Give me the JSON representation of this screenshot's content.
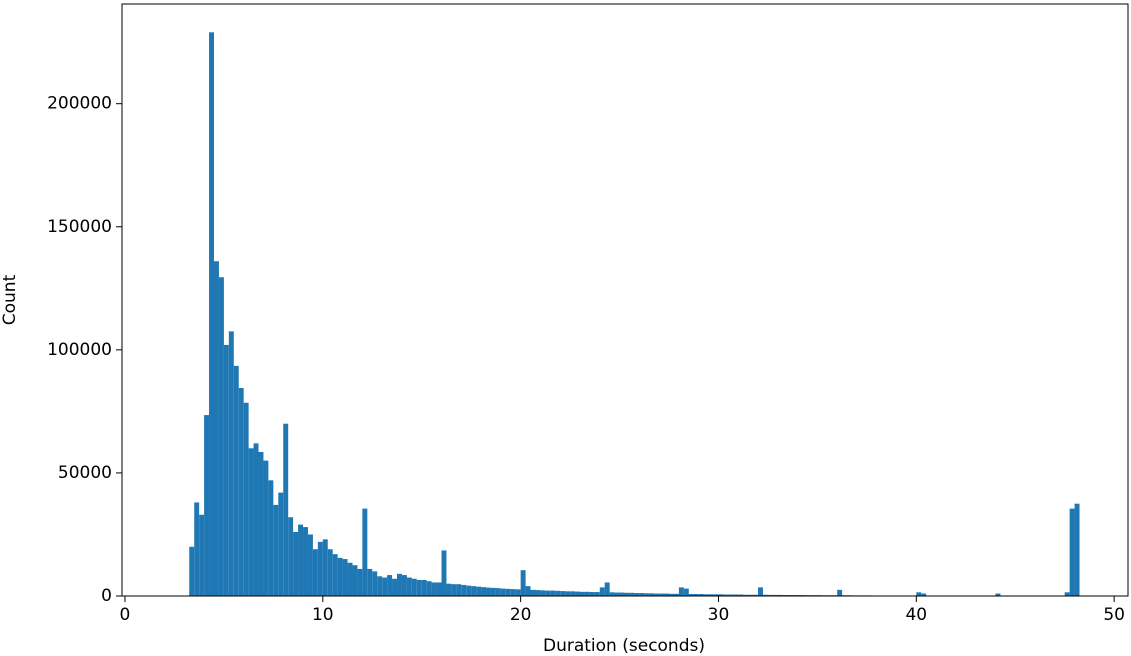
{
  "chart_data": {
    "type": "histogram",
    "xlabel": "Duration (seconds)",
    "ylabel": "Count",
    "color": "#1f77b4",
    "bins": [
      3.25,
      3.5,
      3.75,
      4,
      4.25,
      4.5,
      4.75,
      5,
      5.25,
      5.5,
      5.75,
      6,
      6.25,
      6.5,
      6.75,
      7,
      7.25,
      7.5,
      7.75,
      8,
      8.25,
      8.5,
      8.75,
      9,
      9.25,
      9.5,
      9.75,
      10,
      10.25,
      10.5,
      10.75,
      11,
      11.25,
      11.5,
      11.75,
      12,
      12.25,
      12.5,
      12.75,
      13,
      13.25,
      13.5,
      13.75,
      14,
      14.25,
      14.5,
      14.75,
      15,
      15.25,
      15.5,
      15.75,
      16,
      16.25,
      16.5,
      16.75,
      17,
      17.25,
      17.5,
      17.75,
      18,
      18.25,
      18.5,
      18.75,
      19,
      19.25,
      19.5,
      19.75,
      20,
      20.25,
      20.5,
      20.75,
      21,
      21.25,
      21.5,
      21.75,
      22,
      22.25,
      22.5,
      22.75,
      23,
      23.25,
      23.5,
      23.75,
      24,
      24.25,
      24.5,
      24.75,
      25,
      25.25,
      25.5,
      25.75,
      26,
      26.25,
      26.5,
      26.75,
      27,
      27.25,
      27.5,
      27.75,
      28,
      28.25,
      28.5,
      28.75,
      29,
      29.25,
      29.5,
      29.75,
      30,
      30.25,
      30.5,
      30.75,
      31,
      31.25,
      31.5,
      31.75,
      32,
      32.25,
      32.5,
      32.75,
      33,
      33.25,
      33.5,
      33.75,
      34,
      34.25,
      34.5,
      34.75,
      35,
      35.25,
      35.5,
      35.75,
      36,
      36.25,
      36.5,
      36.75,
      37,
      37.25,
      37.5,
      37.75,
      38,
      38.25,
      38.5,
      38.75,
      39,
      39.25,
      39.5,
      39.75,
      40,
      40.25,
      40.5,
      40.75,
      41,
      41.25,
      41.5,
      41.75,
      42,
      42.25,
      42.5,
      42.75,
      43,
      43.25,
      43.5,
      43.75,
      44,
      44.25,
      44.5,
      44.75,
      45,
      45.25,
      45.5,
      45.75,
      46,
      46.25,
      46.5,
      46.75,
      47,
      47.25,
      47.5,
      47.75,
      48,
      48.25
    ],
    "values": [
      20000,
      38000,
      33000,
      73500,
      229000,
      136000,
      129500,
      102000,
      107500,
      93500,
      84500,
      78500,
      60000,
      62000,
      58500,
      55000,
      47000,
      37000,
      42000,
      70000,
      32000,
      26000,
      29000,
      28000,
      25000,
      19000,
      22000,
      23000,
      19000,
      17000,
      15500,
      15000,
      13500,
      12500,
      11000,
      35500,
      11000,
      10000,
      8000,
      7500,
      8500,
      7000,
      9000,
      8500,
      7500,
      7000,
      6500,
      6500,
      6000,
      5500,
      5500,
      18500,
      5000,
      4800,
      4800,
      4500,
      4200,
      4000,
      3800,
      3600,
      3400,
      3300,
      3200,
      3000,
      2900,
      2800,
      2700,
      10500,
      4000,
      2500,
      2400,
      2300,
      2200,
      2200,
      2100,
      2000,
      1900,
      1900,
      1800,
      1700,
      1700,
      1600,
      1600,
      3500,
      5500,
      1500,
      1400,
      1400,
      1300,
      1300,
      1200,
      1200,
      1100,
      1100,
      1000,
      1000,
      1000,
      900,
      900,
      3500,
      3000,
      800,
      800,
      800,
      700,
      700,
      700,
      700,
      600,
      600,
      600,
      600,
      500,
      500,
      500,
      3500,
      500,
      450,
      450,
      450,
      400,
      400,
      400,
      400,
      350,
      350,
      350,
      350,
      300,
      300,
      300,
      2500,
      300,
      300,
      250,
      250,
      250,
      250,
      200,
      200,
      200,
      200,
      200,
      200,
      200,
      200,
      200,
      1500,
      1000,
      150,
      150,
      150,
      150,
      150,
      150,
      150,
      150,
      150,
      150,
      150,
      150,
      150,
      150,
      1000,
      100,
      100,
      100,
      100,
      100,
      100,
      100,
      100,
      100,
      100,
      100,
      100,
      100,
      1500,
      35500,
      37500
    ],
    "xlim": [
      -0.15,
      50.7
    ],
    "xticks": [
      0,
      10,
      20,
      30,
      40,
      50
    ],
    "ylim": [
      0,
      240500
    ],
    "yticks": [
      0,
      50000,
      100000,
      150000,
      200000
    ]
  }
}
